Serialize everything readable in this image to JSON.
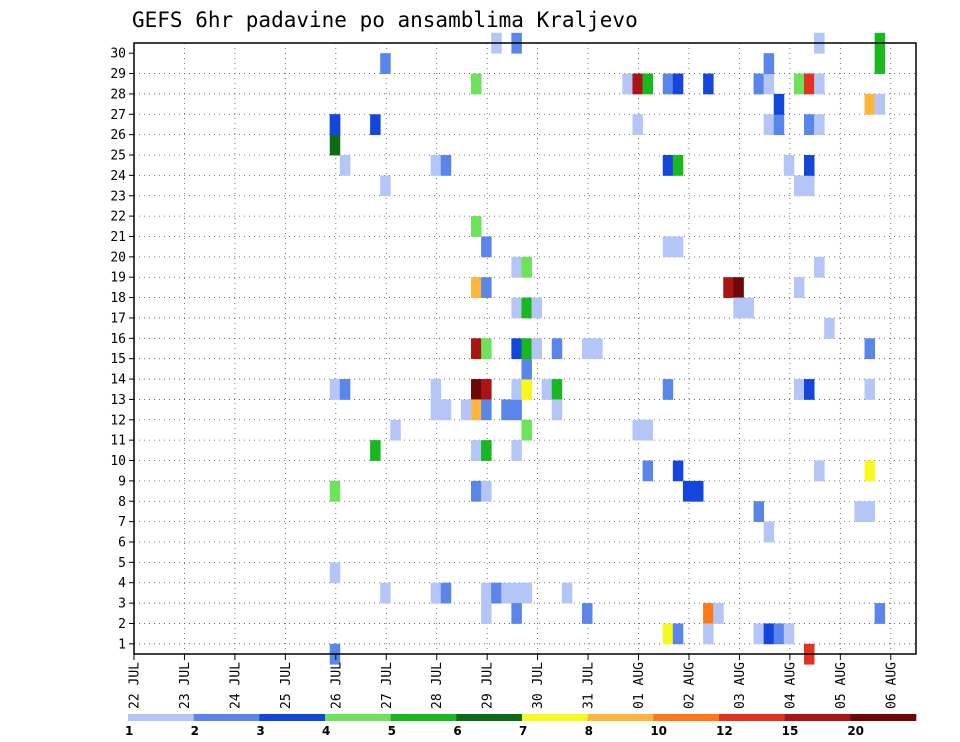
{
  "chart_data": {
    "type": "heatmap",
    "title": "GEFS 6hr padavine po ansamblima Kraljevo",
    "xlabel": "",
    "ylabel": "",
    "x_tick_labels": [
      "22 JUL",
      "23 JUL",
      "24 JUL",
      "25 JUL",
      "26 JUL",
      "27 JUL",
      "28 JUL",
      "29 JUL",
      "30 JUL",
      "31 JUL",
      "01 AUG",
      "02 AUG",
      "03 AUG",
      "04 AUG",
      "05 AUG",
      "06 AUG"
    ],
    "y_tick_labels": [
      "1",
      "2",
      "3",
      "4",
      "5",
      "6",
      "7",
      "8",
      "9",
      "10",
      "11",
      "12",
      "13",
      "14",
      "15",
      "16",
      "17",
      "18",
      "19",
      "20",
      "21",
      "22",
      "23",
      "24",
      "25",
      "26",
      "27",
      "28",
      "29",
      "30"
    ],
    "x_range_days": [
      0,
      15.5
    ],
    "y_range_members": [
      0,
      30
    ],
    "grid": true,
    "legend": {
      "placement": "bottom",
      "breaks": [
        "1",
        "2",
        "3",
        "4",
        "5",
        "6",
        "7",
        "8",
        "10",
        "12",
        "15",
        "20"
      ],
      "colors": [
        "#b4c6f8",
        "#5a86ea",
        "#1446dc",
        "#6ce35a",
        "#18b81e",
        "#0e6c14",
        "#f8f81e",
        "#ffb43c",
        "#ff7818",
        "#e0321e",
        "#aa1414",
        "#6e0808"
      ]
    },
    "cells": [
      [
        3.88,
        0,
        2
      ],
      [
        3.88,
        4,
        1
      ],
      [
        3.88,
        13,
        1
      ],
      [
        4.08,
        13,
        2
      ],
      [
        3.88,
        25,
        6
      ],
      [
        3.88,
        26,
        3
      ],
      [
        3.88,
        26,
        3
      ],
      [
        4.08,
        24,
        1
      ],
      [
        3.88,
        8,
        4
      ],
      [
        4.68,
        10,
        5
      ],
      [
        4.88,
        3,
        1
      ],
      [
        4.88,
        23,
        1
      ],
      [
        4.88,
        29,
        2
      ],
      [
        4.68,
        26,
        3
      ],
      [
        5.08,
        11,
        1
      ],
      [
        5.88,
        12,
        1
      ],
      [
        6.08,
        12,
        1
      ],
      [
        5.88,
        13,
        1
      ],
      [
        5.88,
        24,
        1
      ],
      [
        6.08,
        24,
        2
      ],
      [
        5.88,
        3,
        1
      ],
      [
        6.08,
        3,
        2
      ],
      [
        6.68,
        28,
        4
      ],
      [
        6.68,
        21,
        4
      ],
      [
        6.88,
        20,
        2
      ],
      [
        6.68,
        18,
        8
      ],
      [
        6.88,
        18,
        2
      ],
      [
        6.68,
        15,
        11
      ],
      [
        6.88,
        15,
        4
      ],
      [
        6.68,
        13,
        12
      ],
      [
        6.88,
        13,
        11
      ],
      [
        6.68,
        12,
        8
      ],
      [
        6.88,
        12,
        2
      ],
      [
        6.48,
        12,
        1
      ],
      [
        6.68,
        10,
        1
      ],
      [
        6.88,
        10,
        5
      ],
      [
        6.68,
        8,
        2
      ],
      [
        6.88,
        8,
        1
      ],
      [
        6.88,
        3,
        1
      ],
      [
        7.08,
        3,
        2
      ],
      [
        6.88,
        2,
        1
      ],
      [
        7.08,
        30,
        1
      ],
      [
        7.48,
        30,
        2
      ],
      [
        7.28,
        12,
        2
      ],
      [
        7.48,
        12,
        2
      ],
      [
        7.48,
        13,
        1
      ],
      [
        7.68,
        13,
        7
      ],
      [
        7.68,
        14,
        2
      ],
      [
        7.48,
        15,
        3
      ],
      [
        7.68,
        15,
        5
      ],
      [
        7.88,
        15,
        1
      ],
      [
        7.48,
        17,
        1
      ],
      [
        7.68,
        17,
        5
      ],
      [
        7.88,
        17,
        1
      ],
      [
        7.48,
        19,
        1
      ],
      [
        7.68,
        19,
        4
      ],
      [
        7.68,
        11,
        4
      ],
      [
        7.48,
        10,
        1
      ],
      [
        7.28,
        3,
        1
      ],
      [
        7.48,
        3,
        1
      ],
      [
        7.68,
        3,
        1
      ],
      [
        7.48,
        2,
        2
      ],
      [
        8.08,
        13,
        1
      ],
      [
        8.28,
        13,
        5
      ],
      [
        8.28,
        15,
        2
      ],
      [
        8.28,
        12,
        1
      ],
      [
        8.48,
        3,
        1
      ],
      [
        8.88,
        2,
        2
      ],
      [
        8.88,
        15,
        1
      ],
      [
        9.08,
        15,
        1
      ],
      [
        9.68,
        28,
        1
      ],
      [
        9.88,
        28,
        11
      ],
      [
        10.08,
        28,
        5
      ],
      [
        9.88,
        26,
        1
      ],
      [
        9.88,
        11,
        1
      ],
      [
        10.08,
        11,
        1
      ],
      [
        10.08,
        9,
        2
      ],
      [
        10.48,
        1,
        7
      ],
      [
        10.68,
        1,
        2
      ],
      [
        10.48,
        28,
        2
      ],
      [
        10.68,
        28,
        3
      ],
      [
        10.48,
        24,
        3
      ],
      [
        10.68,
        24,
        5
      ],
      [
        10.48,
        20,
        1
      ],
      [
        10.68,
        20,
        1
      ],
      [
        10.48,
        13,
        2
      ],
      [
        10.68,
        9,
        3
      ],
      [
        10.88,
        8,
        3
      ],
      [
        11.08,
        8,
        3
      ],
      [
        11.28,
        28,
        3
      ],
      [
        11.28,
        2,
        9
      ],
      [
        11.48,
        2,
        1
      ],
      [
        11.28,
        1,
        1
      ],
      [
        11.68,
        18,
        11
      ],
      [
        11.88,
        18,
        12
      ],
      [
        11.88,
        17,
        1
      ],
      [
        12.08,
        17,
        1
      ],
      [
        12.28,
        28,
        2
      ],
      [
        12.48,
        28,
        1
      ],
      [
        12.28,
        1,
        1
      ],
      [
        12.48,
        1,
        3
      ],
      [
        12.68,
        1,
        2
      ],
      [
        12.88,
        1,
        1
      ],
      [
        12.48,
        29,
        2
      ],
      [
        12.48,
        26,
        1
      ],
      [
        12.68,
        26,
        2
      ],
      [
        12.68,
        27,
        3
      ],
      [
        12.88,
        24,
        1
      ],
      [
        12.28,
        7,
        2
      ],
      [
        12.48,
        6,
        1
      ],
      [
        13.08,
        28,
        4
      ],
      [
        13.28,
        28,
        10
      ],
      [
        13.48,
        28,
        1
      ],
      [
        13.08,
        23,
        1
      ],
      [
        13.28,
        23,
        1
      ],
      [
        13.28,
        24,
        3
      ],
      [
        13.28,
        26,
        2
      ],
      [
        13.48,
        26,
        1
      ],
      [
        13.08,
        18,
        1
      ],
      [
        13.48,
        19,
        1
      ],
      [
        13.68,
        16,
        1
      ],
      [
        13.08,
        13,
        1
      ],
      [
        13.28,
        13,
        3
      ],
      [
        13.48,
        30,
        1
      ],
      [
        13.48,
        9,
        1
      ],
      [
        13.28,
        0,
        10
      ],
      [
        14.28,
        7,
        1
      ],
      [
        14.48,
        7,
        1
      ],
      [
        14.48,
        9,
        7
      ],
      [
        14.48,
        13,
        1
      ],
      [
        14.48,
        15,
        2
      ],
      [
        14.48,
        27,
        8
      ],
      [
        14.68,
        27,
        1
      ],
      [
        14.68,
        29,
        5
      ],
      [
        14.68,
        30,
        5
      ],
      [
        14.68,
        2,
        2
      ]
    ]
  }
}
